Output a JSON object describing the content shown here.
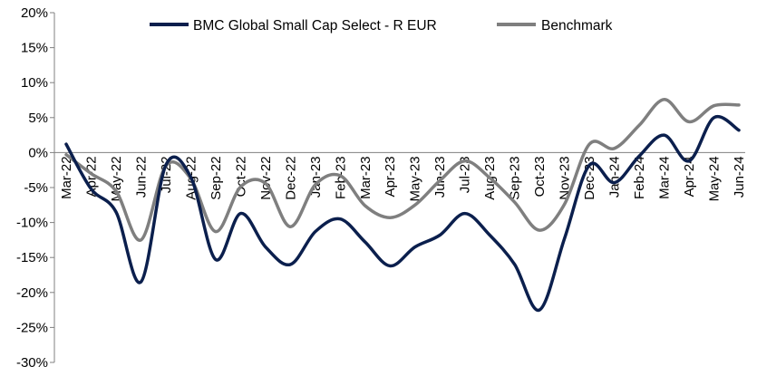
{
  "chart_data": {
    "type": "line",
    "title": "",
    "xlabel": "",
    "ylabel": "",
    "ylim": [
      -30,
      20
    ],
    "yticks": [
      20,
      15,
      10,
      5,
      0,
      -5,
      -10,
      -15,
      -20,
      -25,
      -30
    ],
    "ytick_labels": [
      "20%",
      "15%",
      "10%",
      "5%",
      "0%",
      "-5%",
      "-10%",
      "-15%",
      "-20%",
      "-25%",
      "-30%"
    ],
    "legend_position": "top",
    "categories": [
      "Mar-22",
      "Apr-22",
      "May-22",
      "Jun-22",
      "Jul-22",
      "Aug-22",
      "Sep-22",
      "Oct-22",
      "Nov-22",
      "Dec-22",
      "Jan-23",
      "Feb-23",
      "Mar-23",
      "Apr-23",
      "May-23",
      "Jun-23",
      "Jul-23",
      "Aug-23",
      "Sep-23",
      "Oct-23",
      "Nov-23",
      "Dec-23",
      "Jan-24",
      "Feb-24",
      "Mar-24",
      "Apr-24",
      "May-24",
      "Jun-24"
    ],
    "series": [
      {
        "name": "BMC Global Small Cap Select - R EUR",
        "color": "#0b1f4d",
        "values": [
          1.2,
          -5.2,
          -8.5,
          -18.5,
          -1.8,
          -3.5,
          -15.3,
          -8.7,
          -13.5,
          -16.0,
          -11.3,
          -9.5,
          -12.8,
          -16.2,
          -13.5,
          -11.8,
          -8.7,
          -11.8,
          -16.0,
          -22.5,
          -12.3,
          -1.8,
          -4.3,
          -0.5,
          2.5,
          -1.2,
          5.0,
          3.2
        ]
      },
      {
        "name": "Benchmark",
        "color": "#7f7f7f",
        "values": [
          -0.3,
          -3.0,
          -5.5,
          -12.5,
          -1.9,
          -3.7,
          -11.3,
          -4.9,
          -4.4,
          -10.6,
          -4.6,
          -3.3,
          -7.6,
          -9.3,
          -7.5,
          -4.0,
          -1.2,
          -3.6,
          -7.1,
          -11.1,
          -7.4,
          1.2,
          0.6,
          3.9,
          7.6,
          4.4,
          6.7,
          6.8
        ]
      }
    ]
  }
}
